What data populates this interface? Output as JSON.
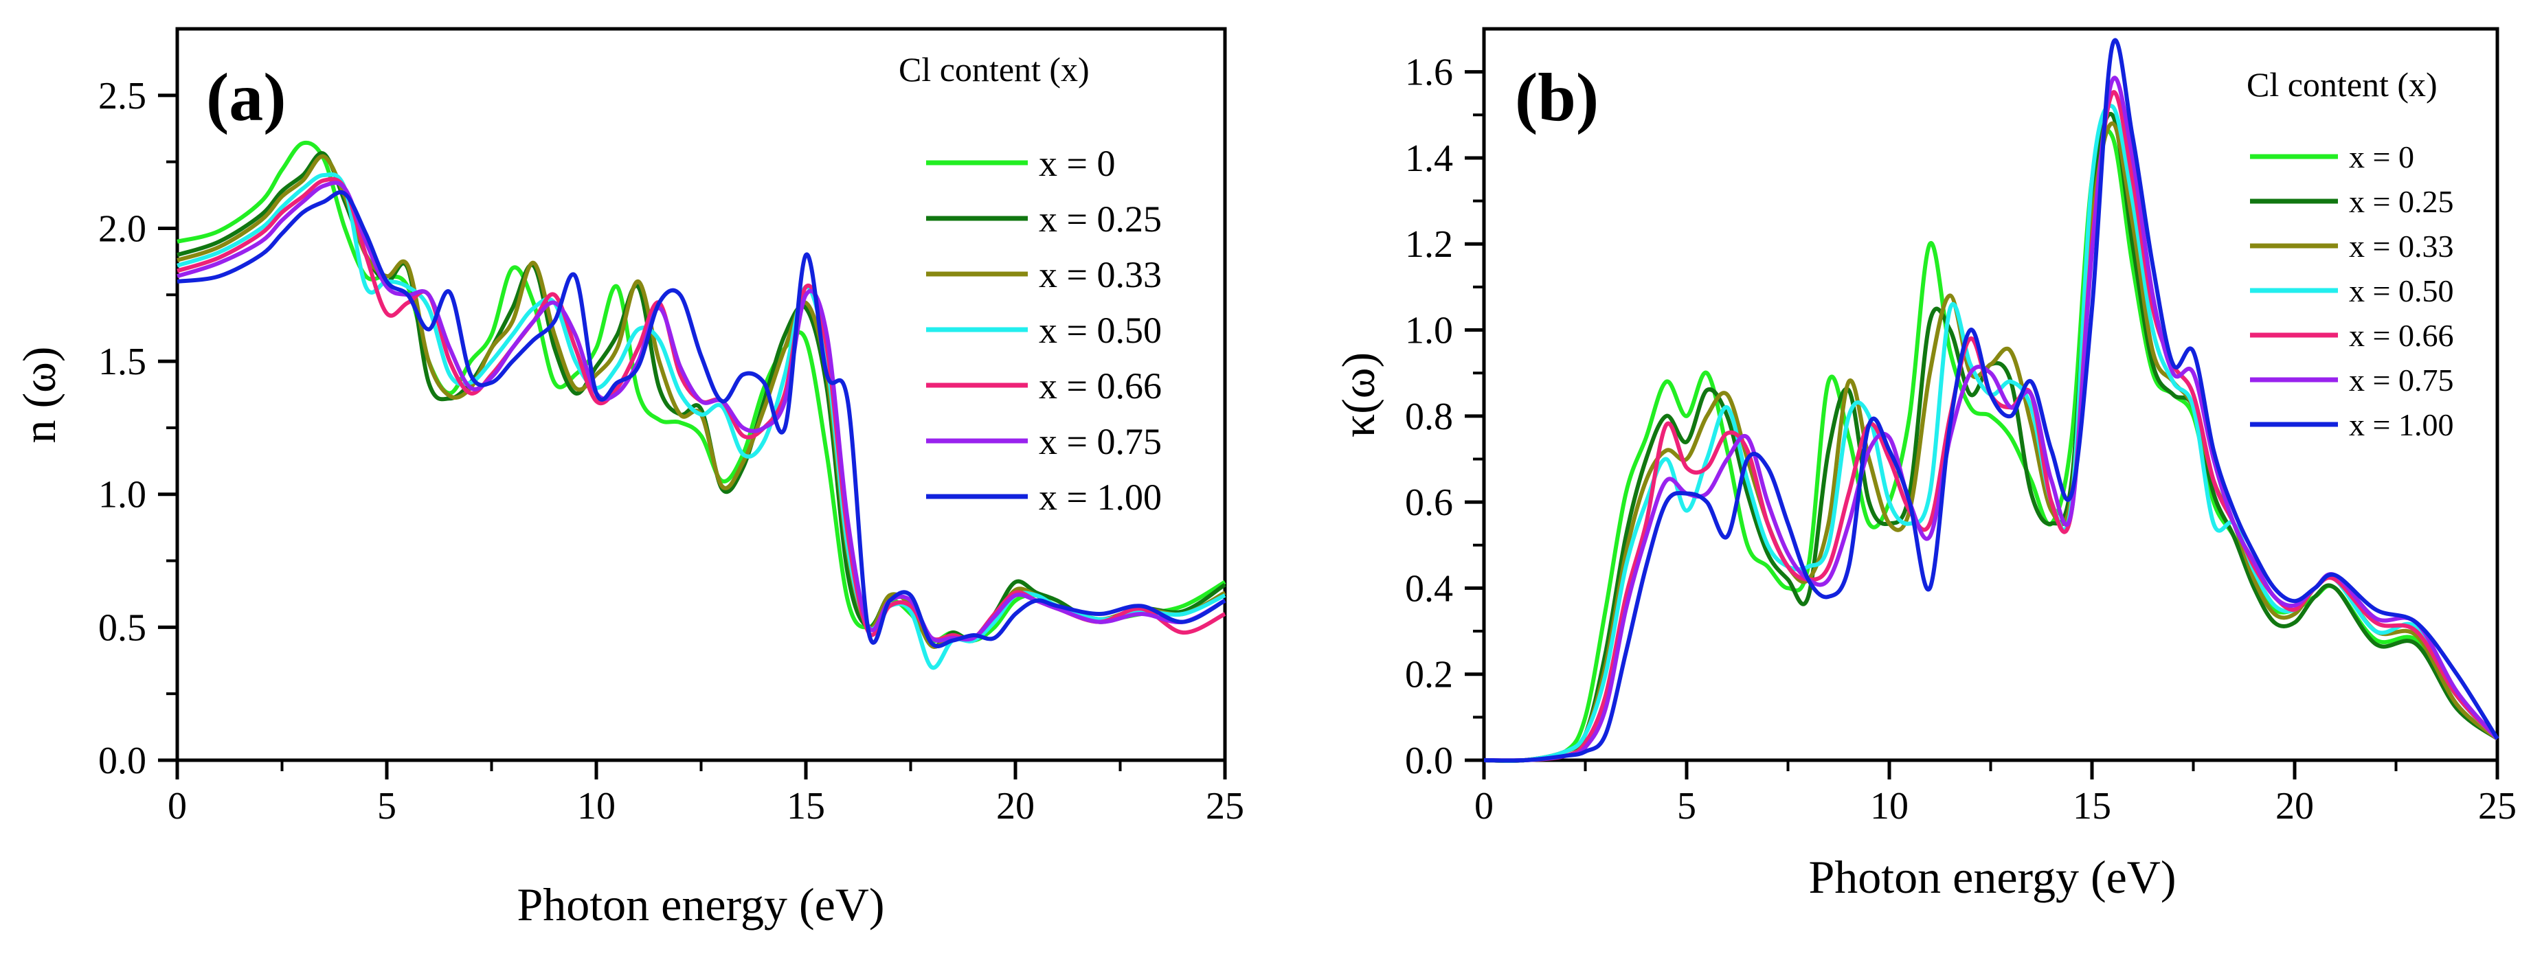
{
  "chart_data": [
    {
      "id": "a",
      "type": "line",
      "panel_label": "(a)",
      "xlabel": "Photon energy (eV)",
      "ylabel": "n (ω)",
      "xlim": [
        0,
        25
      ],
      "ylim": [
        0,
        2.75
      ],
      "x_ticks": [
        0,
        5,
        10,
        15,
        20,
        25
      ],
      "x_tick_labels": [
        "0",
        "5",
        "10",
        "15",
        "20",
        "25"
      ],
      "y_ticks": [
        0,
        0.5,
        1.0,
        1.5,
        2.0,
        2.5
      ],
      "y_tick_labels": [
        "0.0",
        "0.5",
        "1.0",
        "1.5",
        "2.0",
        "2.5"
      ],
      "legend_title": "Cl content (x)",
      "legend_position": "top-right",
      "grid": false,
      "x": [
        0,
        1,
        2,
        2.5,
        3,
        3.5,
        4,
        4.5,
        5,
        5.5,
        6,
        6.5,
        7,
        7.5,
        8,
        8.5,
        9,
        9.5,
        10,
        10.5,
        11,
        11.5,
        12,
        12.5,
        13,
        13.5,
        14,
        14.5,
        15,
        15.5,
        16,
        16.5,
        17,
        17.5,
        18,
        18.5,
        19,
        19.5,
        20,
        20.5,
        21,
        22,
        23,
        24,
        25
      ],
      "series": [
        {
          "name": "x = 0",
          "color": "#22ee22",
          "values": [
            1.95,
            1.99,
            2.1,
            2.22,
            2.32,
            2.26,
            2.0,
            1.82,
            1.82,
            1.78,
            1.5,
            1.38,
            1.5,
            1.6,
            1.85,
            1.72,
            1.42,
            1.45,
            1.55,
            1.78,
            1.38,
            1.28,
            1.27,
            1.22,
            1.05,
            1.15,
            1.4,
            1.55,
            1.58,
            1.15,
            0.6,
            0.5,
            0.6,
            0.55,
            0.45,
            0.48,
            0.45,
            0.5,
            0.6,
            0.62,
            0.58,
            0.53,
            0.55,
            0.58,
            0.67
          ]
        },
        {
          "name": "x = 0.25",
          "color": "#117711",
          "values": [
            1.9,
            1.95,
            2.05,
            2.14,
            2.2,
            2.28,
            2.1,
            1.9,
            1.8,
            1.85,
            1.42,
            1.36,
            1.42,
            1.55,
            1.7,
            1.86,
            1.55,
            1.38,
            1.48,
            1.6,
            1.78,
            1.4,
            1.3,
            1.32,
            1.02,
            1.1,
            1.35,
            1.6,
            1.7,
            1.4,
            0.7,
            0.5,
            0.62,
            0.58,
            0.43,
            0.48,
            0.45,
            0.55,
            0.67,
            0.63,
            0.6,
            0.52,
            0.57,
            0.56,
            0.66
          ]
        },
        {
          "name": "x = 0.33",
          "color": "#888811",
          "values": [
            1.88,
            1.93,
            2.03,
            2.12,
            2.18,
            2.27,
            2.12,
            1.9,
            1.82,
            1.86,
            1.5,
            1.37,
            1.4,
            1.55,
            1.65,
            1.87,
            1.6,
            1.4,
            1.45,
            1.55,
            1.8,
            1.5,
            1.3,
            1.3,
            1.03,
            1.12,
            1.32,
            1.55,
            1.72,
            1.45,
            0.78,
            0.5,
            0.62,
            0.58,
            0.43,
            0.47,
            0.45,
            0.53,
            0.64,
            0.62,
            0.58,
            0.53,
            0.57,
            0.55,
            0.63
          ]
        },
        {
          "name": "x = 0.50",
          "color": "#22eeee",
          "values": [
            1.86,
            1.91,
            2.0,
            2.08,
            2.15,
            2.2,
            2.15,
            1.78,
            1.8,
            1.78,
            1.7,
            1.45,
            1.42,
            1.5,
            1.6,
            1.7,
            1.72,
            1.5,
            1.4,
            1.48,
            1.62,
            1.58,
            1.38,
            1.3,
            1.33,
            1.15,
            1.2,
            1.45,
            1.78,
            1.5,
            0.8,
            0.5,
            0.58,
            0.56,
            0.35,
            0.45,
            0.45,
            0.52,
            0.62,
            0.62,
            0.58,
            0.53,
            0.56,
            0.55,
            0.62
          ]
        },
        {
          "name": "x = 0.66",
          "color": "#ee2277",
          "values": [
            1.84,
            1.89,
            1.98,
            2.06,
            2.12,
            2.18,
            2.15,
            1.9,
            1.68,
            1.72,
            1.75,
            1.5,
            1.38,
            1.45,
            1.55,
            1.65,
            1.75,
            1.55,
            1.35,
            1.4,
            1.55,
            1.72,
            1.45,
            1.35,
            1.35,
            1.22,
            1.25,
            1.38,
            1.78,
            1.55,
            0.85,
            0.48,
            0.58,
            0.58,
            0.46,
            0.47,
            0.46,
            0.55,
            0.63,
            0.6,
            0.57,
            0.52,
            0.57,
            0.48,
            0.55
          ]
        },
        {
          "name": "x = 0.75",
          "color": "#9922ee",
          "values": [
            1.82,
            1.87,
            1.95,
            2.03,
            2.1,
            2.16,
            2.15,
            1.95,
            1.78,
            1.75,
            1.75,
            1.55,
            1.4,
            1.44,
            1.55,
            1.65,
            1.72,
            1.6,
            1.38,
            1.38,
            1.5,
            1.7,
            1.48,
            1.35,
            1.35,
            1.25,
            1.25,
            1.35,
            1.75,
            1.6,
            0.9,
            0.5,
            0.6,
            0.6,
            0.46,
            0.46,
            0.46,
            0.54,
            0.62,
            0.6,
            0.57,
            0.52,
            0.55,
            0.52,
            0.6
          ]
        },
        {
          "name": "x = 1.00",
          "color": "#1122dd",
          "values": [
            1.8,
            1.82,
            1.9,
            1.98,
            2.06,
            2.1,
            2.13,
            1.98,
            1.8,
            1.75,
            1.62,
            1.76,
            1.45,
            1.42,
            1.5,
            1.58,
            1.65,
            1.82,
            1.38,
            1.42,
            1.48,
            1.72,
            1.75,
            1.52,
            1.35,
            1.45,
            1.42,
            1.25,
            1.9,
            1.45,
            1.35,
            0.48,
            0.6,
            0.62,
            0.44,
            0.45,
            0.47,
            0.46,
            0.55,
            0.6,
            0.58,
            0.55,
            0.58,
            0.52,
            0.6
          ]
        }
      ]
    },
    {
      "id": "b",
      "type": "line",
      "panel_label": "(b)",
      "xlabel": "Photon energy (eV)",
      "ylabel": "κ(ω)",
      "xlim": [
        0,
        25
      ],
      "ylim": [
        0,
        1.7
      ],
      "x_ticks": [
        0,
        5,
        10,
        15,
        20,
        25
      ],
      "x_tick_labels": [
        "0",
        "5",
        "10",
        "15",
        "20",
        "25"
      ],
      "y_ticks": [
        0,
        0.2,
        0.4,
        0.6,
        0.8,
        1.0,
        1.2,
        1.4,
        1.6
      ],
      "y_tick_labels": [
        "0.0",
        "0.2",
        "0.4",
        "0.6",
        "0.8",
        "1.0",
        "1.2",
        "1.4",
        "1.6"
      ],
      "legend_title": "Cl content (x)",
      "legend_position": "top-right",
      "grid": false,
      "x": [
        0,
        1,
        2,
        2.5,
        3,
        3.5,
        4,
        4.5,
        5,
        5.5,
        6,
        6.5,
        7,
        7.5,
        8,
        8.5,
        9,
        9.5,
        10,
        10.5,
        11,
        11.5,
        12,
        12.5,
        13,
        13.5,
        14,
        14.5,
        15,
        15.5,
        16,
        16.5,
        17,
        17.5,
        18,
        18.5,
        19,
        19.5,
        20,
        20.5,
        21,
        22,
        23,
        24,
        25
      ],
      "series": [
        {
          "name": "x = 0",
          "color": "#22ee22",
          "values": [
            0.0,
            0.0,
            0.02,
            0.1,
            0.35,
            0.62,
            0.75,
            0.88,
            0.8,
            0.9,
            0.72,
            0.5,
            0.45,
            0.4,
            0.45,
            0.88,
            0.75,
            0.55,
            0.6,
            0.8,
            1.2,
            0.95,
            0.82,
            0.8,
            0.75,
            0.65,
            0.55,
            0.75,
            1.35,
            1.45,
            1.15,
            0.9,
            0.85,
            0.8,
            0.6,
            0.52,
            0.42,
            0.35,
            0.35,
            0.38,
            0.4,
            0.28,
            0.28,
            0.15,
            0.05
          ]
        },
        {
          "name": "x = 0.25",
          "color": "#117711",
          "values": [
            0.0,
            0.0,
            0.02,
            0.06,
            0.25,
            0.52,
            0.7,
            0.8,
            0.74,
            0.86,
            0.8,
            0.62,
            0.48,
            0.42,
            0.38,
            0.72,
            0.86,
            0.6,
            0.55,
            0.62,
            1.02,
            1.0,
            0.85,
            0.92,
            0.88,
            0.62,
            0.55,
            0.65,
            1.3,
            1.5,
            1.2,
            0.92,
            0.85,
            0.82,
            0.62,
            0.52,
            0.4,
            0.32,
            0.32,
            0.38,
            0.4,
            0.27,
            0.27,
            0.12,
            0.05
          ]
        },
        {
          "name": "x = 0.33",
          "color": "#888811",
          "values": [
            0.0,
            0.0,
            0.02,
            0.06,
            0.22,
            0.48,
            0.65,
            0.72,
            0.7,
            0.8,
            0.85,
            0.7,
            0.55,
            0.45,
            0.42,
            0.55,
            0.88,
            0.7,
            0.55,
            0.58,
            0.9,
            1.08,
            0.9,
            0.92,
            0.95,
            0.78,
            0.58,
            0.62,
            1.25,
            1.48,
            1.25,
            0.95,
            0.88,
            0.82,
            0.65,
            0.55,
            0.42,
            0.34,
            0.34,
            0.4,
            0.42,
            0.3,
            0.29,
            0.13,
            0.05
          ]
        },
        {
          "name": "x = 0.50",
          "color": "#22eeee",
          "values": [
            0.0,
            0.0,
            0.02,
            0.06,
            0.2,
            0.45,
            0.6,
            0.7,
            0.58,
            0.7,
            0.82,
            0.65,
            0.5,
            0.45,
            0.45,
            0.5,
            0.8,
            0.8,
            0.6,
            0.55,
            0.62,
            1.05,
            0.92,
            0.85,
            0.88,
            0.82,
            0.6,
            0.6,
            1.35,
            1.52,
            1.3,
            1.0,
            0.88,
            0.82,
            0.55,
            0.55,
            0.44,
            0.36,
            0.35,
            0.4,
            0.42,
            0.3,
            0.31,
            0.15,
            0.05
          ]
        },
        {
          "name": "x = 0.66",
          "color": "#ee2277",
          "values": [
            0.0,
            0.0,
            0.01,
            0.04,
            0.15,
            0.38,
            0.55,
            0.78,
            0.68,
            0.68,
            0.76,
            0.72,
            0.55,
            0.45,
            0.42,
            0.45,
            0.62,
            0.78,
            0.7,
            0.58,
            0.55,
            0.8,
            0.98,
            0.85,
            0.82,
            0.85,
            0.6,
            0.58,
            1.2,
            1.55,
            1.35,
            1.05,
            0.92,
            0.85,
            0.65,
            0.55,
            0.45,
            0.38,
            0.35,
            0.4,
            0.42,
            0.32,
            0.3,
            0.15,
            0.05
          ]
        },
        {
          "name": "x = 0.75",
          "color": "#9922ee",
          "values": [
            0.0,
            0.0,
            0.01,
            0.03,
            0.12,
            0.35,
            0.52,
            0.65,
            0.62,
            0.62,
            0.7,
            0.75,
            0.6,
            0.48,
            0.42,
            0.42,
            0.55,
            0.72,
            0.75,
            0.6,
            0.52,
            0.75,
            0.9,
            0.9,
            0.82,
            0.85,
            0.65,
            0.58,
            1.18,
            1.58,
            1.4,
            1.08,
            0.9,
            0.9,
            0.7,
            0.55,
            0.46,
            0.38,
            0.36,
            0.4,
            0.43,
            0.33,
            0.32,
            0.16,
            0.05
          ]
        },
        {
          "name": "x = 1.00",
          "color": "#1122dd",
          "values": [
            0.0,
            0.0,
            0.01,
            0.02,
            0.06,
            0.25,
            0.45,
            0.6,
            0.62,
            0.6,
            0.52,
            0.7,
            0.68,
            0.55,
            0.42,
            0.38,
            0.45,
            0.78,
            0.72,
            0.6,
            0.4,
            0.78,
            1.0,
            0.85,
            0.8,
            0.88,
            0.72,
            0.62,
            1.05,
            1.66,
            1.45,
            1.15,
            0.92,
            0.95,
            0.72,
            0.58,
            0.48,
            0.4,
            0.37,
            0.4,
            0.43,
            0.35,
            0.32,
            0.2,
            0.05
          ]
        }
      ]
    }
  ]
}
